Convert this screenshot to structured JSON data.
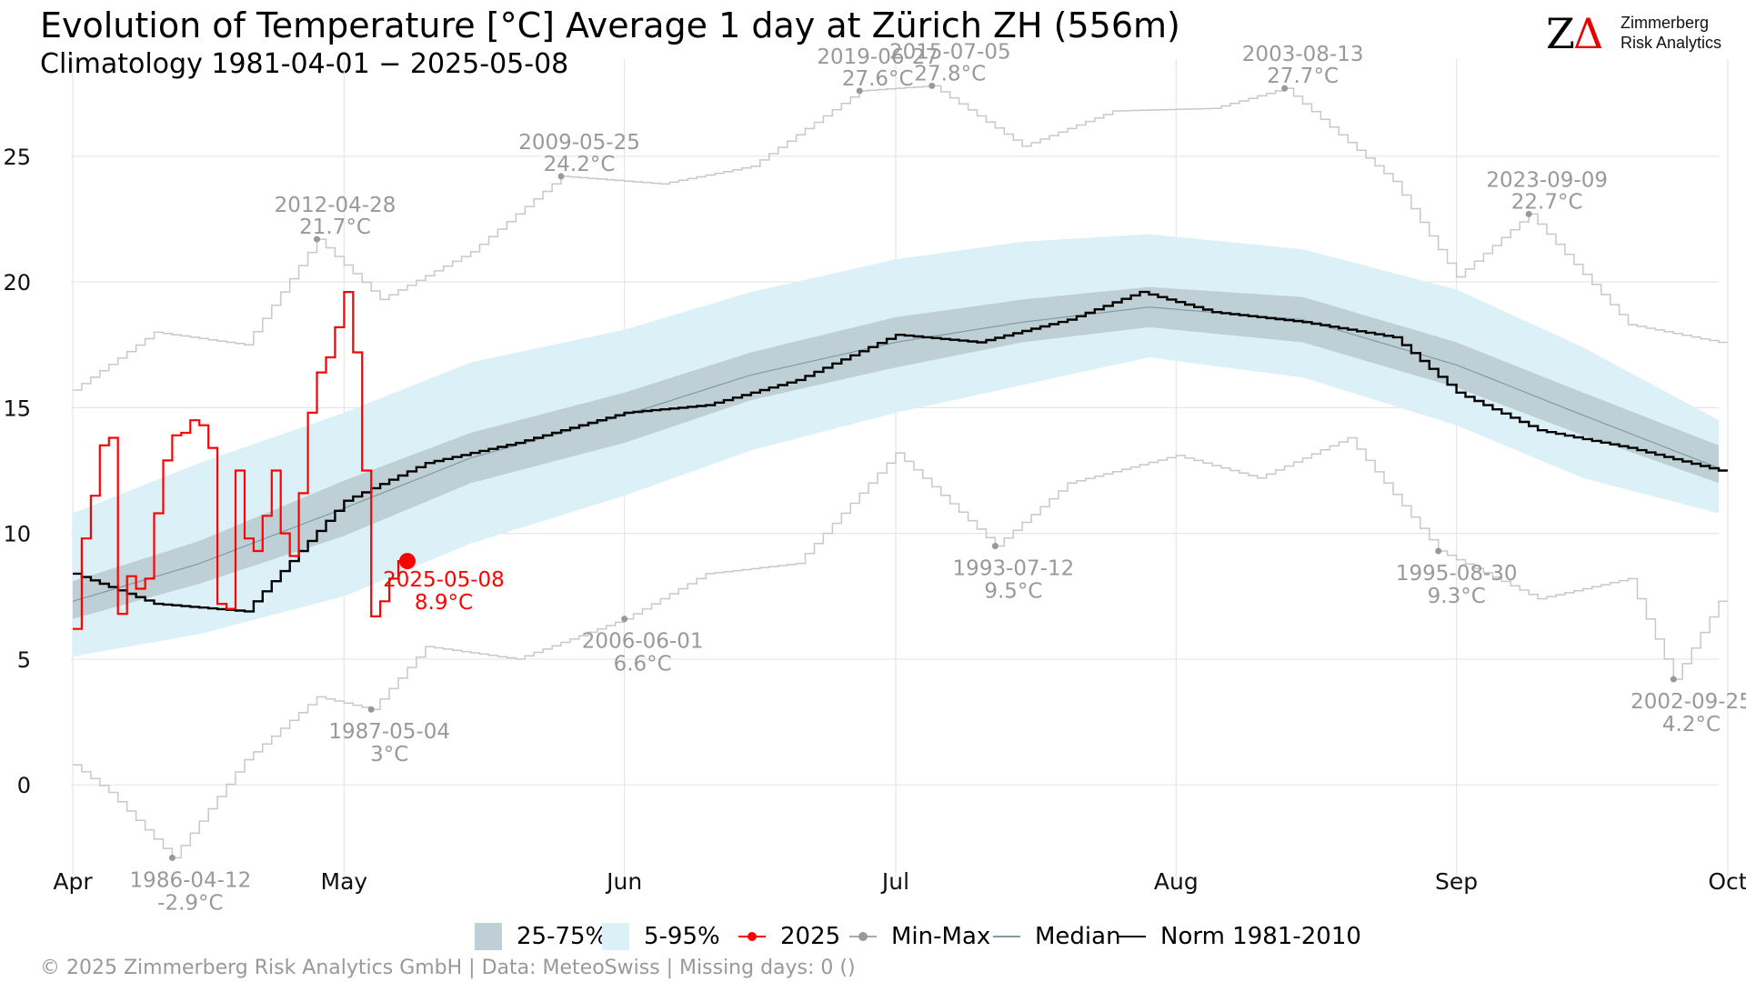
{
  "header": {
    "title": "Evolution of Temperature [°C] Average 1 day at Zürich  ZH (556m)",
    "subtitle": "Climatology 1981-04-01 − 2025-05-08"
  },
  "logo": {
    "mark_z": "Z",
    "mark_delta": "Δ",
    "line1": "Zimmerberg",
    "line2": "Risk Analytics"
  },
  "footer": {
    "text": "©  2025 Zimmerberg Risk Analytics GmbH | Data: MeteoSwiss | Missing days: 0 ()"
  },
  "colors": {
    "band_25_75": "#bfcfd6",
    "band_5_95": "#dcf0f8",
    "current_year": "#ff0000",
    "min_max": "#c8c8c8",
    "min_max_points": "#999999",
    "median": "#7f9ba6",
    "norm": "#000000",
    "annotation_text": "#999999"
  },
  "legend": {
    "items": [
      {
        "label": "25-75%",
        "key": "band-25-75",
        "icon": "filled-square"
      },
      {
        "label": "5-95%",
        "key": "band-5-95",
        "icon": "filled-square"
      },
      {
        "label": "2025",
        "key": "current-year",
        "icon": "line-with-dot"
      },
      {
        "label": "Min-Max",
        "key": "min-max",
        "icon": "line-with-dot"
      },
      {
        "label": "Median",
        "key": "median",
        "icon": "line"
      },
      {
        "label": "Norm 1981-2010",
        "key": "norm",
        "icon": "line"
      }
    ]
  },
  "chart_data": {
    "type": "line",
    "title": "Evolution of Temperature [°C] Average 1 day at Zürich  ZH (556m)",
    "subtitle": "Climatology 1981-04-01 − 2025-05-08",
    "xlabel": "",
    "ylabel": "",
    "xlim": [
      "04-01",
      "09-30"
    ],
    "ylim": [
      -3.5,
      28.5
    ],
    "grid": true,
    "x_ticks": [
      {
        "date": "04-01",
        "label": "Apr"
      },
      {
        "date": "05-01",
        "label": "May"
      },
      {
        "date": "06-01",
        "label": "Jun"
      },
      {
        "date": "07-01",
        "label": "Jul"
      },
      {
        "date": "08-01",
        "label": "Aug"
      },
      {
        "date": "09-01",
        "label": "Sep"
      },
      {
        "date": "10-01",
        "label": "Oct"
      }
    ],
    "y_ticks": [
      0,
      5,
      10,
      15,
      20,
      25
    ],
    "bands": {
      "description_x": "day of season (date)",
      "dates": [
        "04-01",
        "04-15",
        "05-01",
        "05-15",
        "06-01",
        "06-15",
        "07-01",
        "07-15",
        "07-29",
        "08-15",
        "09-01",
        "09-15",
        "09-30"
      ],
      "p05": [
        5.1,
        6.0,
        7.5,
        9.6,
        11.5,
        13.3,
        14.8,
        15.9,
        17.0,
        16.2,
        14.3,
        12.2,
        10.8
      ],
      "p25": [
        6.6,
        8.0,
        9.9,
        12.0,
        13.6,
        15.3,
        16.6,
        17.6,
        18.2,
        17.6,
        15.8,
        13.9,
        12.0
      ],
      "p75": [
        8.1,
        9.7,
        12.1,
        14.0,
        15.6,
        17.2,
        18.6,
        19.3,
        19.8,
        19.4,
        17.6,
        15.6,
        13.5
      ],
      "p95": [
        10.8,
        12.8,
        14.8,
        16.8,
        18.1,
        19.6,
        20.9,
        21.6,
        21.9,
        21.3,
        19.7,
        17.4,
        14.5
      ],
      "median": [
        7.3,
        8.8,
        11.0,
        13.0,
        14.7,
        16.3,
        17.6,
        18.4,
        19.0,
        18.5,
        16.7,
        14.7,
        12.6
      ]
    },
    "series": [
      {
        "name": "2025",
        "dates": [
          "04-01",
          "04-02",
          "04-03",
          "04-04",
          "04-05",
          "04-06",
          "04-07",
          "04-08",
          "04-09",
          "04-10",
          "04-11",
          "04-12",
          "04-13",
          "04-14",
          "04-15",
          "04-16",
          "04-17",
          "04-18",
          "04-19",
          "04-20",
          "04-21",
          "04-22",
          "04-23",
          "04-24",
          "04-25",
          "04-26",
          "04-27",
          "04-28",
          "04-29",
          "04-30",
          "05-01",
          "05-02",
          "05-03",
          "05-04",
          "05-05",
          "05-06",
          "05-07",
          "05-08"
        ],
        "values": [
          6.2,
          9.8,
          11.5,
          13.5,
          13.8,
          6.8,
          8.3,
          7.8,
          8.2,
          10.8,
          12.9,
          13.9,
          14.0,
          14.5,
          14.3,
          13.4,
          7.2,
          7.0,
          12.5,
          9.8,
          9.3,
          10.7,
          12.5,
          10.0,
          9.1,
          11.6,
          14.8,
          16.4,
          17.0,
          18.2,
          19.6,
          17.2,
          12.5,
          6.7,
          7.3,
          8.2,
          8.9,
          8.9
        ]
      },
      {
        "name": "Norm 1981-2010",
        "dates": [
          "04-01",
          "04-10",
          "04-20",
          "05-01",
          "05-10",
          "05-20",
          "06-01",
          "06-10",
          "06-20",
          "07-01",
          "07-10",
          "07-20",
          "07-28",
          "08-05",
          "08-15",
          "08-25",
          "09-01",
          "09-10",
          "09-20",
          "09-30"
        ],
        "values": [
          8.4,
          7.2,
          6.9,
          11.3,
          12.8,
          13.6,
          14.8,
          15.1,
          16.1,
          17.9,
          17.6,
          18.5,
          19.6,
          18.8,
          18.4,
          17.8,
          15.6,
          14.1,
          13.4,
          12.5
        ]
      }
    ],
    "min_max": {
      "max_dates": [
        "04-01",
        "04-10",
        "04-20",
        "04-28",
        "05-05",
        "05-15",
        "05-25",
        "06-05",
        "06-15",
        "06-27",
        "07-05",
        "07-15",
        "07-25",
        "08-05",
        "08-13",
        "08-25",
        "09-01",
        "09-09",
        "09-20",
        "09-30"
      ],
      "max_values": [
        15.7,
        18.0,
        17.5,
        21.7,
        19.3,
        21.2,
        24.2,
        23.9,
        24.6,
        27.6,
        27.8,
        25.4,
        26.8,
        26.9,
        27.7,
        24.0,
        20.2,
        22.7,
        18.3,
        17.6
      ],
      "min_dates": [
        "04-01",
        "04-05",
        "04-12",
        "04-20",
        "04-28",
        "05-04",
        "05-10",
        "05-20",
        "06-01",
        "06-10",
        "06-20",
        "07-01",
        "07-12",
        "07-20",
        "08-01",
        "08-10",
        "08-20",
        "08-30",
        "09-10",
        "09-20",
        "09-25",
        "09-30"
      ],
      "min_values": [
        0.8,
        -0.3,
        -2.9,
        1.0,
        3.5,
        3.0,
        5.5,
        5.0,
        6.6,
        8.4,
        8.8,
        13.2,
        9.5,
        12.0,
        13.1,
        12.2,
        13.8,
        9.3,
        7.4,
        8.2,
        4.2,
        7.3
      ]
    },
    "annotations": [
      {
        "date": "2012-04-28",
        "value": "21.7°C",
        "kind": "max"
      },
      {
        "date": "2009-05-25",
        "value": "24.2°C",
        "kind": "max"
      },
      {
        "date": "2019-06-27",
        "value": "27.6°C",
        "kind": "max"
      },
      {
        "date": "2015-07-05",
        "value": "27.8°C",
        "kind": "max"
      },
      {
        "date": "2003-08-13",
        "value": "27.7°C",
        "kind": "max"
      },
      {
        "date": "2023-09-09",
        "value": "22.7°C",
        "kind": "max"
      },
      {
        "date": "1986-04-12",
        "value": "-2.9°C",
        "kind": "min"
      },
      {
        "date": "1987-05-04",
        "value": "3°C",
        "kind": "min"
      },
      {
        "date": "2006-06-01",
        "value": "6.6°C",
        "kind": "min"
      },
      {
        "date": "1993-07-12",
        "value": "9.5°C",
        "kind": "min"
      },
      {
        "date": "1995-08-30",
        "value": "9.3°C",
        "kind": "min"
      },
      {
        "date": "2002-09-25",
        "value": "4.2°C",
        "kind": "min"
      },
      {
        "date": "2025-05-08",
        "value": "8.9°C",
        "kind": "current"
      }
    ]
  }
}
